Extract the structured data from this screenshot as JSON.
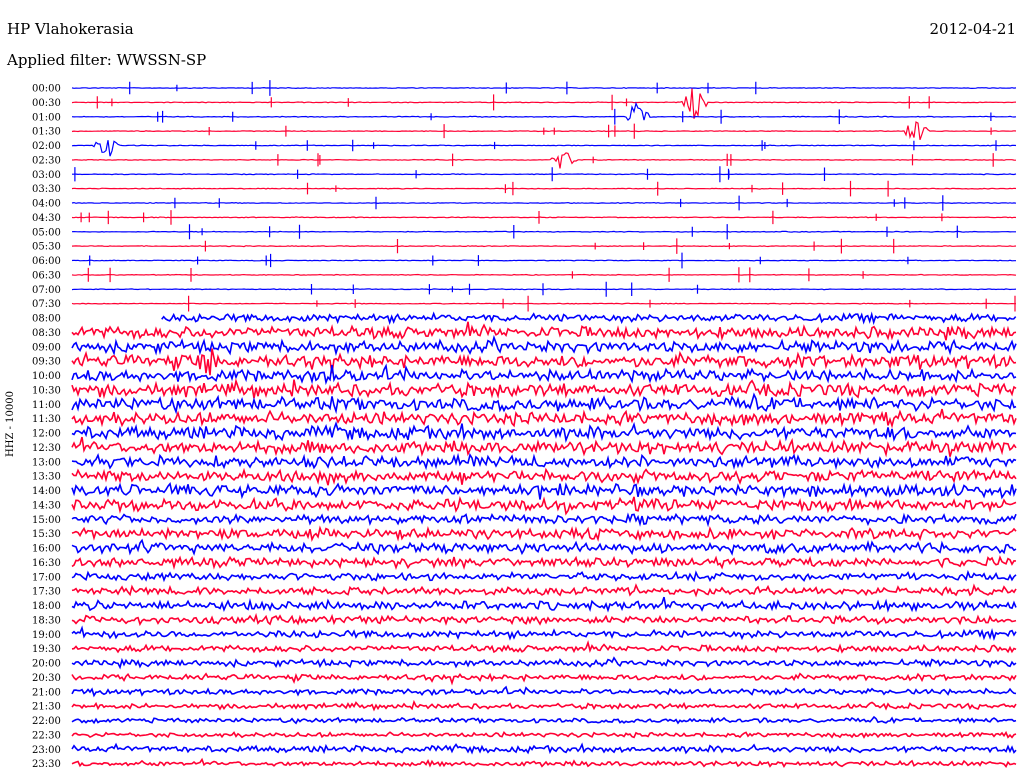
{
  "header": {
    "station": "HP Vlahokerasia",
    "date": "2012-04-21",
    "filter": "Applied filter: WWSSN-SP"
  },
  "channel_label": "HHZ - 10000",
  "colors": {
    "trace_even": "#0000ff",
    "trace_odd": "#ff0033",
    "background": "#ffffff",
    "text": "#000000"
  },
  "chart_data": {
    "type": "helicorder",
    "title": "HP Vlahokerasia",
    "date": "2012-04-21",
    "filter": "WWSSN-SP",
    "channel": "HHZ - 10000",
    "line_minutes": 30,
    "tick_labels": [
      "00:00",
      "00:30",
      "01:00",
      "01:30",
      "02:00",
      "02:30",
      "03:00",
      "03:30",
      "04:00",
      "04:30",
      "05:00",
      "05:30",
      "06:00",
      "06:30",
      "07:00",
      "07:30",
      "08:00",
      "08:30",
      "09:00",
      "09:30",
      "10:00",
      "10:30",
      "11:00",
      "11:30",
      "12:00",
      "12:30",
      "13:00",
      "13:30",
      "14:00",
      "14:30",
      "15:00",
      "15:30",
      "16:00",
      "16:30",
      "17:00",
      "17:30",
      "18:00",
      "18:30",
      "19:00",
      "19:30",
      "20:00",
      "20:30",
      "21:00",
      "21:30",
      "22:00",
      "22:30",
      "23:00",
      "23:30"
    ],
    "colors": [
      "#0000ff",
      "#ff0033"
    ],
    "data_start_time": "08:00",
    "data_start_fraction": 0.095,
    "noise_amplitude": [
      0.3,
      0.3,
      0.3,
      0.3,
      0.3,
      0.3,
      0.3,
      0.3,
      0.3,
      0.3,
      0.3,
      0.3,
      0.3,
      0.3,
      0.3,
      0.3,
      3.0,
      4.5,
      4.5,
      5.0,
      4.5,
      5.0,
      5.0,
      5.0,
      5.0,
      5.0,
      4.5,
      4.5,
      4.5,
      4.5,
      3.5,
      4.0,
      4.0,
      3.5,
      3.0,
      3.0,
      3.5,
      3.0,
      2.8,
      2.5,
      2.5,
      2.3,
      2.2,
      2.0,
      1.8,
      1.8,
      2.5,
      2.0
    ],
    "events": [
      {
        "line": "09:30",
        "at": 0.143,
        "amplitude": 22
      },
      {
        "line": "10:00",
        "at": 0.278,
        "amplitude": 18
      },
      {
        "line": "11:00",
        "at": 0.278,
        "amplitude": 10
      },
      {
        "line": "00:30",
        "at": 0.66,
        "amplitude": 18
      },
      {
        "line": "01:00",
        "at": 0.599,
        "amplitude": 18
      },
      {
        "line": "01:30",
        "at": 0.894,
        "amplitude": 14
      },
      {
        "line": "02:00",
        "at": 0.037,
        "amplitude": 14
      },
      {
        "line": "02:30",
        "at": 0.521,
        "amplitude": 12
      }
    ],
    "grid": false,
    "legend": "none"
  }
}
